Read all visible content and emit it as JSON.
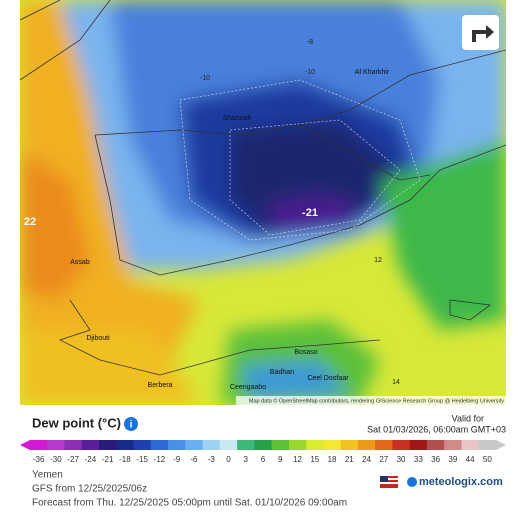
{
  "map": {
    "share_button": "share",
    "place_names": [
      "Sharurah",
      "Al Kharkhir",
      "Assab",
      "Djibouti",
      "Berbera",
      "Bosaso",
      "Badhan",
      "Ceerigaabo",
      "Ceel Doofaar"
    ],
    "contour_labels": [
      "-8",
      "-10",
      "-10",
      "-21",
      "22",
      "12",
      "14"
    ],
    "attribution": "Map data © OpenStreetMap contributors, rendering GIScience Research Group @ Heidelberg University"
  },
  "legend": {
    "title": "Dew point (°C)",
    "valid_label": "Valid for",
    "valid_time": "Sat 01/03/2026, 06:00am GMT+03",
    "ticks": [
      -36,
      -30,
      -27,
      -24,
      -21,
      -18,
      -15,
      -12,
      -9,
      -6,
      -3,
      0,
      3,
      6,
      9,
      12,
      15,
      18,
      21,
      24,
      27,
      30,
      33,
      36,
      39,
      44,
      50
    ],
    "colors": [
      "#d21ad2",
      "#b43cc8",
      "#8c2fb0",
      "#5a1f9a",
      "#2a1a7a",
      "#1a2a8a",
      "#2040b0",
      "#2f6ad6",
      "#4a90e6",
      "#6ab0f0",
      "#9dd2f5",
      "#c8e8f0",
      "#3cb878",
      "#27a048",
      "#5cc03a",
      "#9ad830",
      "#d8ec30",
      "#f5e830",
      "#f2c21e",
      "#ec9a1a",
      "#e06818",
      "#c83220",
      "#a01818",
      "#b05050",
      "#d08a8a",
      "#e8c4c4",
      "#c8c8c8"
    ]
  },
  "footer": {
    "region": "Yemen",
    "model": "GFS from 12/25/2025/06z",
    "forecast": "Forecast from Thu. 12/25/2025 05:00pm until Sat. 01/10/2026 09:00am",
    "brand": "meteologix.com"
  }
}
